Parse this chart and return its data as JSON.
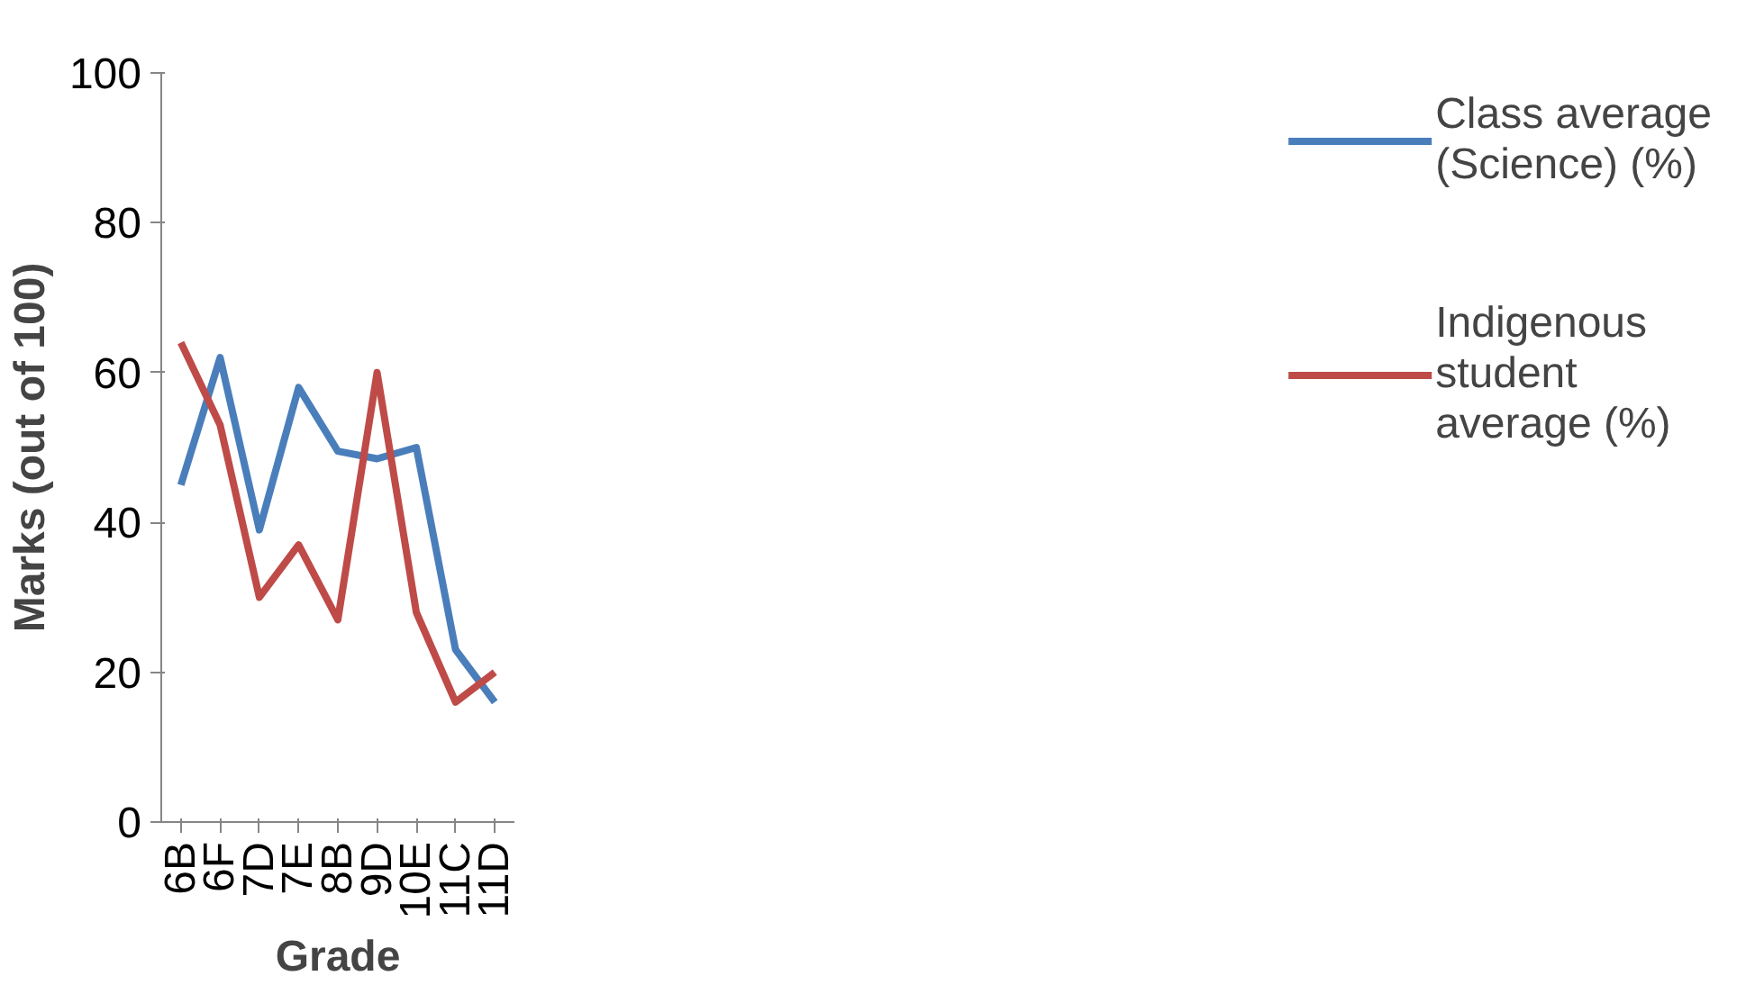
{
  "chart_data": {
    "type": "line",
    "xlabel": "Grade",
    "ylabel": "Marks (out of 100)",
    "categories": [
      "6B",
      "6F",
      "7D",
      "7E",
      "8B",
      "9D",
      "10E",
      "11C",
      "11D"
    ],
    "series": [
      {
        "name": "Class average (Science) (%)",
        "color": "#4a7ebb",
        "values": [
          45,
          62,
          39,
          58,
          49.5,
          48.5,
          50,
          23,
          16
        ]
      },
      {
        "name": "Indigenous student average (%)",
        "color": "#be4b48",
        "values": [
          64,
          53,
          30,
          37,
          27,
          60,
          28,
          16,
          20
        ]
      }
    ],
    "ylim": [
      0,
      100
    ],
    "yticks": [
      0,
      20,
      40,
      60,
      80,
      100
    ],
    "grid": false,
    "legend": "right",
    "marker": "none",
    "line_style": "solid"
  }
}
